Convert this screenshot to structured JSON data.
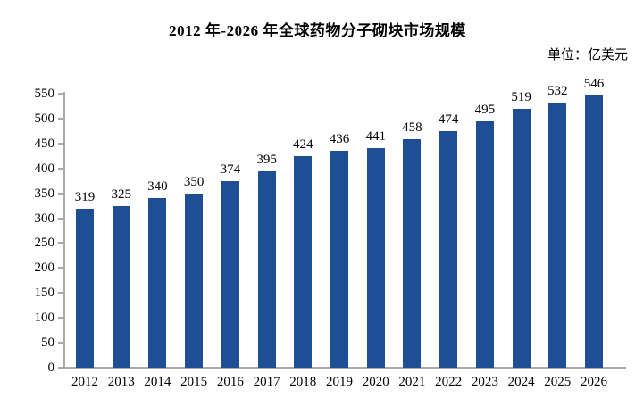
{
  "title": "2012 年-2026 年全球药物分子砌块市场规模",
  "unit_label": "单位：亿美元",
  "colors": {
    "bar": "#1e4e94",
    "axis": "#a9a9a9",
    "text": "#000000"
  },
  "chart_data": {
    "type": "bar",
    "title": "2012 年-2026 年全球药物分子砌块市场规模",
    "unit": "单位：亿美元",
    "categories": [
      "2012",
      "2013",
      "2014",
      "2015",
      "2016",
      "2017",
      "2018",
      "2019",
      "2020",
      "2021",
      "2022",
      "2023",
      "2024",
      "2025",
      "2026"
    ],
    "values": [
      319,
      325,
      340,
      350,
      374,
      395,
      424,
      436,
      441,
      458,
      474,
      495,
      519,
      532,
      546
    ],
    "bar_labels_shown": true,
    "xlabel": "",
    "ylabel": "",
    "ylim": [
      0,
      550
    ],
    "yticks": [
      0,
      50,
      100,
      150,
      200,
      250,
      300,
      350,
      400,
      450,
      500,
      550
    ],
    "grid": false,
    "legend": "none"
  }
}
